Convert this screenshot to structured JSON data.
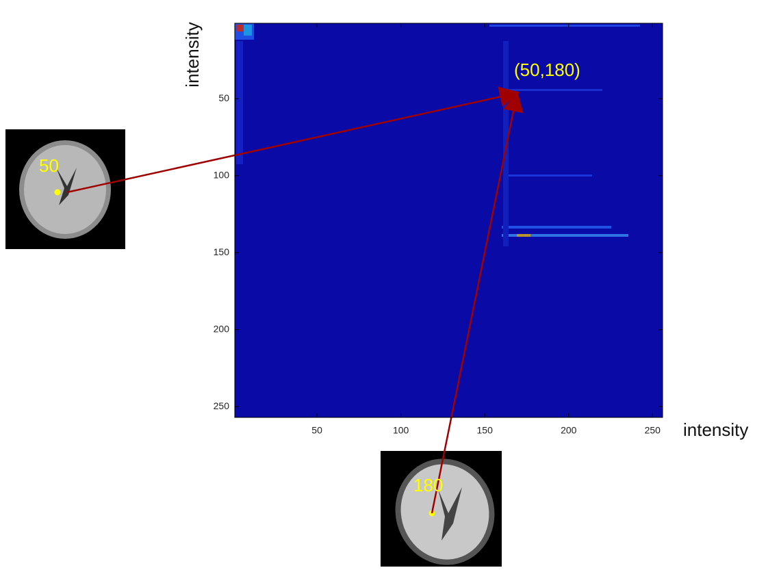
{
  "chart_data": {
    "type": "heatmap",
    "color": "#0a0aa6",
    "xlabel": "intensity",
    "ylabel": "intensity",
    "xlim": [
      1,
      256
    ],
    "ylim": [
      1,
      257
    ],
    "y_reversed": true,
    "xticks": [
      50,
      100,
      150,
      200,
      250
    ],
    "yticks": [
      50,
      100,
      150,
      200,
      250
    ],
    "annotations": [
      "(50,180)",
      "50",
      "180"
    ]
  }
}
